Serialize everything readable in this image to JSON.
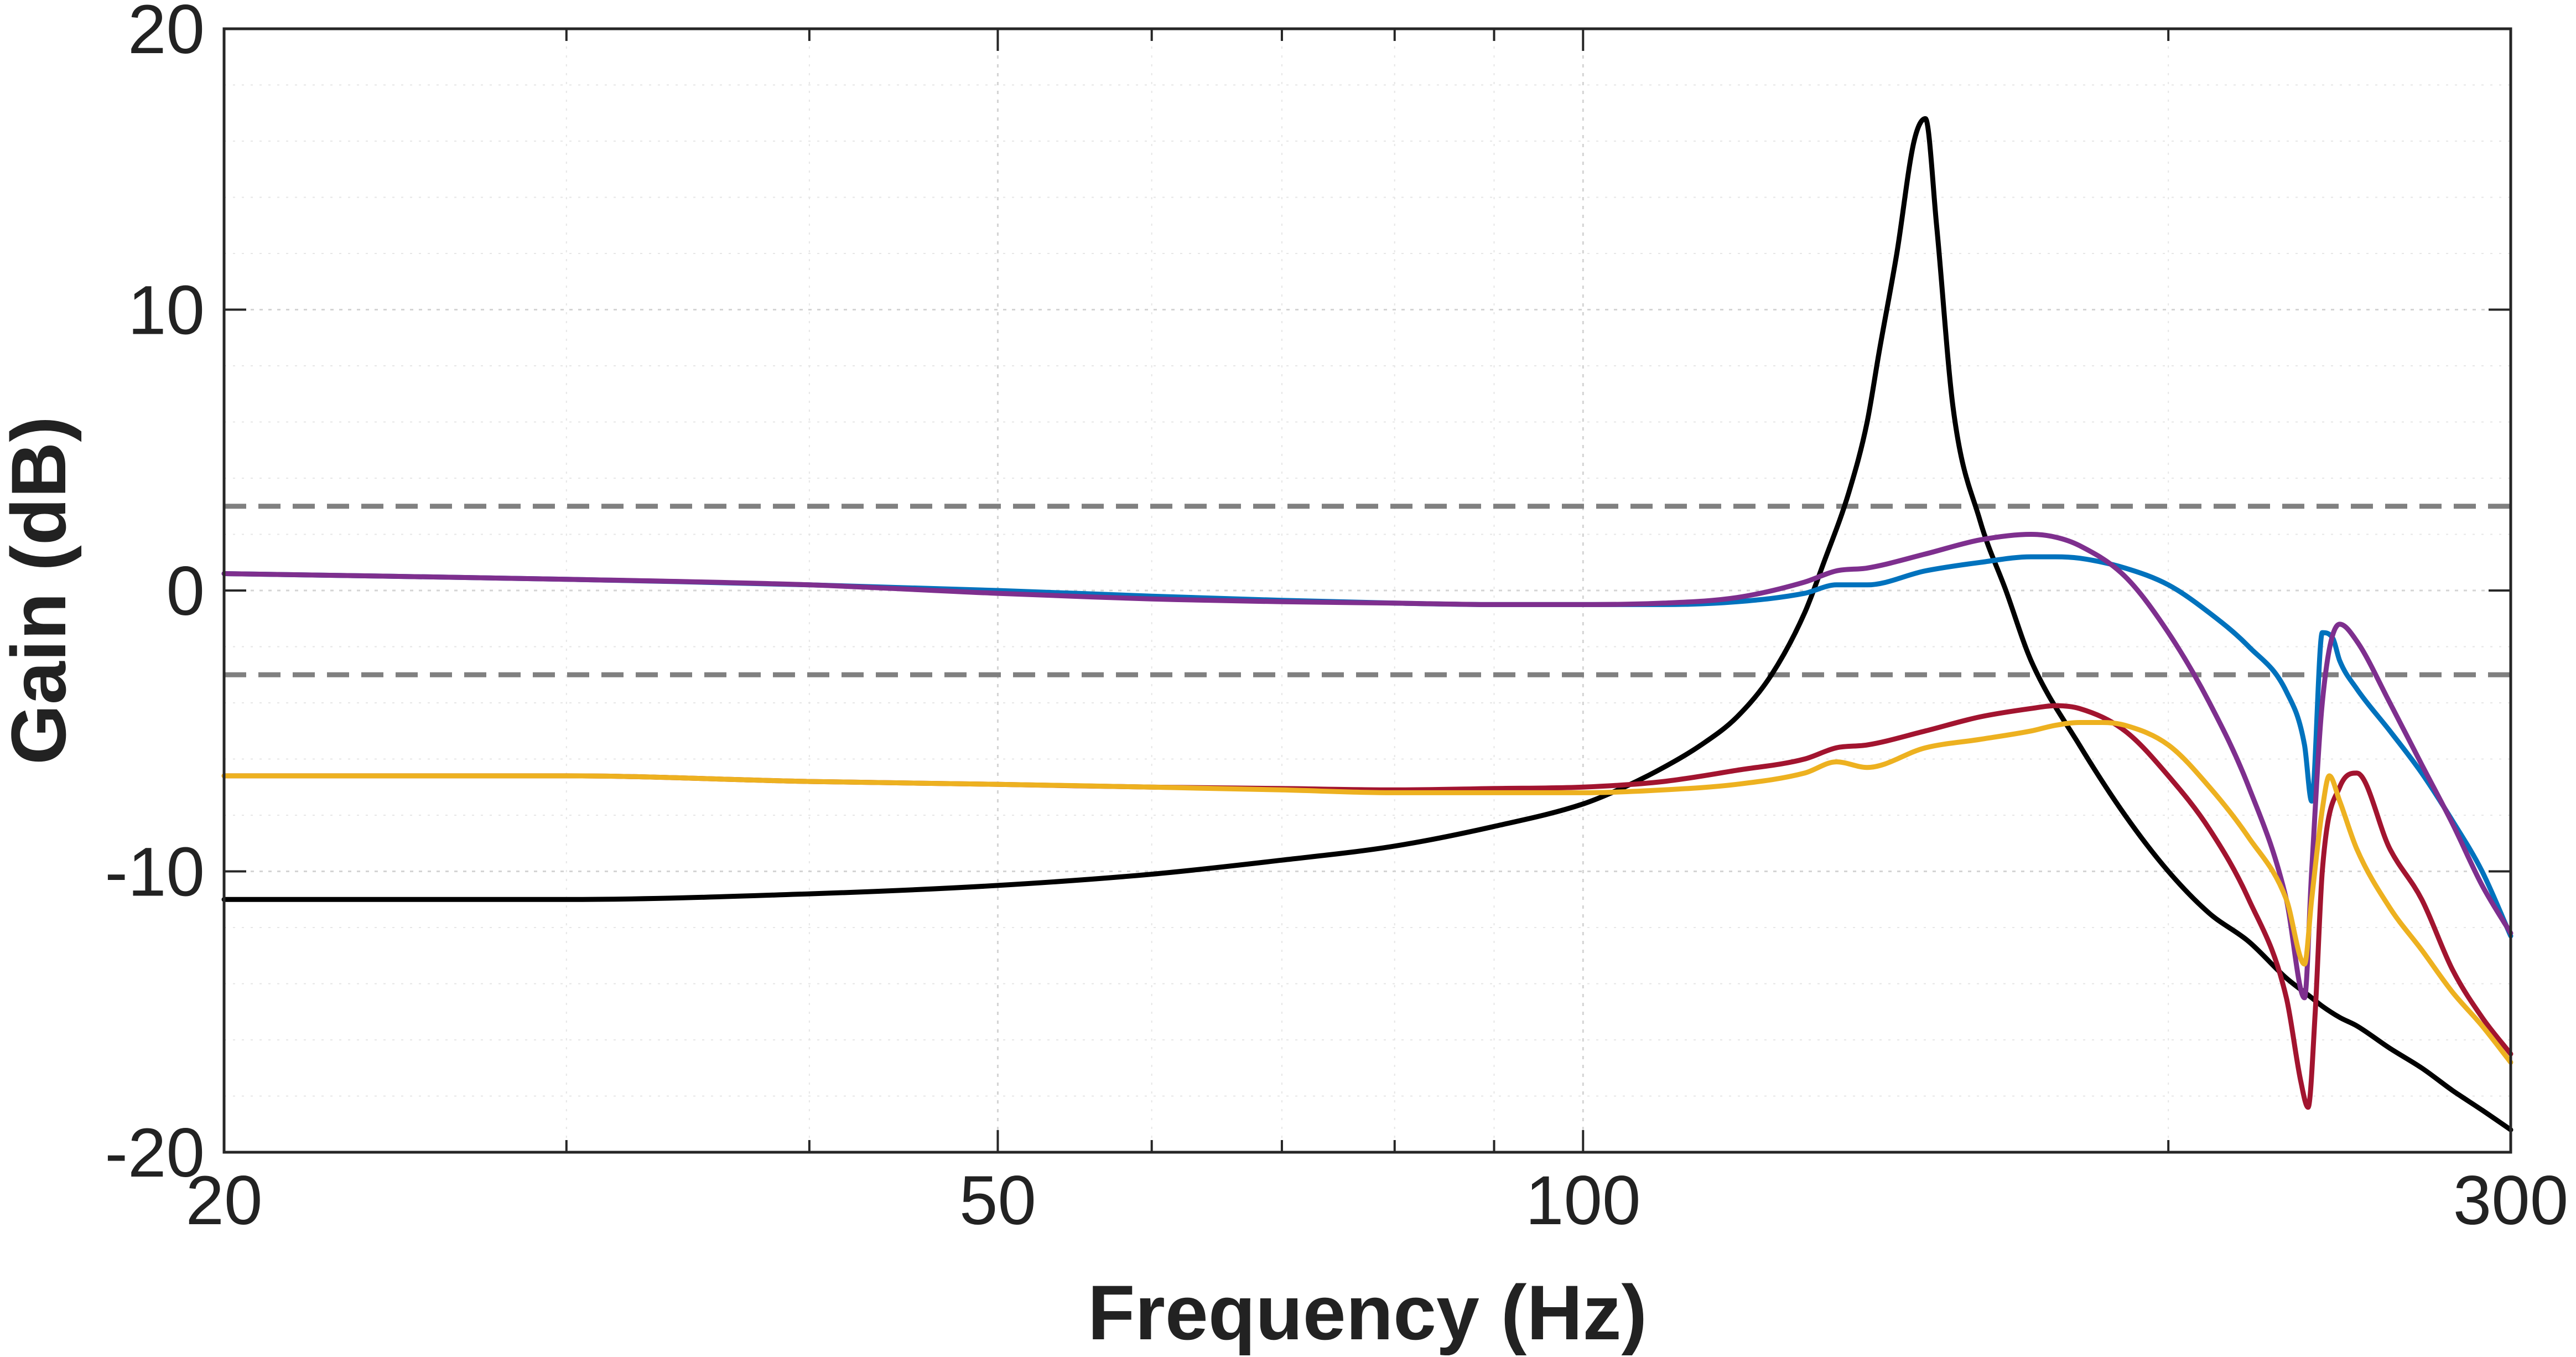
{
  "chart_data": {
    "type": "line",
    "title": "",
    "xlabel": "Frequency (Hz)",
    "ylabel": "Gain (dB)",
    "xscale": "log",
    "xlim": [
      20,
      300
    ],
    "ylim": [
      -20,
      20
    ],
    "xticks": [
      20,
      50,
      100,
      300
    ],
    "xtick_labels": [
      "20",
      "50",
      "100",
      "300"
    ],
    "yticks": [
      -20,
      -10,
      0,
      10,
      20
    ],
    "ytick_labels": [
      "-20",
      "-10",
      "0",
      "10",
      "20"
    ],
    "grid": true,
    "legend": null,
    "reference_lines": [
      {
        "name": "upper-3db-reference",
        "y": 3,
        "color": "#808080",
        "style": "dashed"
      },
      {
        "name": "lower-3db-reference",
        "y": -3,
        "color": "#808080",
        "style": "dashed"
      }
    ],
    "series": [
      {
        "name": "black",
        "color": "#000000",
        "x": [
          20,
          25,
          30,
          40,
          50,
          60,
          70,
          80,
          90,
          100,
          105,
          110,
          115,
          120,
          125,
          130,
          133,
          137,
          140,
          142,
          145,
          148,
          150,
          152,
          155,
          160,
          165,
          170,
          180,
          190,
          200,
          210,
          220,
          230,
          237,
          240,
          245,
          250,
          260,
          270,
          280,
          290,
          300
        ],
        "y": [
          -11.0,
          -11.0,
          -11.0,
          -10.8,
          -10.5,
          -10.1,
          -9.6,
          -9.1,
          -8.4,
          -7.6,
          -7.0,
          -6.3,
          -5.5,
          -4.5,
          -3.0,
          -0.8,
          1.0,
          3.5,
          6.0,
          8.5,
          12.0,
          16.0,
          16.8,
          13.0,
          6.5,
          2.5,
          0.0,
          -2.5,
          -5.5,
          -8.0,
          -10.0,
          -11.5,
          -12.5,
          -13.8,
          -14.5,
          -14.8,
          -15.2,
          -15.5,
          -16.3,
          -17.0,
          -17.8,
          -18.5,
          -19.2
        ]
      },
      {
        "name": "blue",
        "color": "#0072BD",
        "x": [
          20,
          30,
          40,
          50,
          60,
          70,
          80,
          90,
          100,
          110,
          120,
          130,
          135,
          140,
          150,
          160,
          170,
          175,
          180,
          190,
          200,
          210,
          220,
          230,
          235,
          237,
          240,
          243,
          245,
          250,
          260,
          270,
          280,
          290,
          300
        ],
        "y": [
          0.6,
          0.4,
          0.2,
          0.0,
          -0.2,
          -0.35,
          -0.45,
          -0.5,
          -0.5,
          -0.5,
          -0.4,
          -0.1,
          0.2,
          0.2,
          0.7,
          1.0,
          1.2,
          1.2,
          1.15,
          0.8,
          0.2,
          -0.8,
          -2.0,
          -3.6,
          -5.5,
          -7.5,
          -1.5,
          -1.7,
          -2.5,
          -3.5,
          -5.0,
          -6.5,
          -8.2,
          -10.0,
          -12.3
        ]
      },
      {
        "name": "purple",
        "color": "#7E2F8E",
        "x": [
          20,
          30,
          40,
          50,
          60,
          70,
          80,
          90,
          100,
          110,
          120,
          130,
          135,
          140,
          150,
          160,
          170,
          175,
          180,
          190,
          200,
          210,
          220,
          230,
          235,
          237,
          240,
          245,
          250,
          260,
          270,
          280,
          290,
          300
        ],
        "y": [
          0.6,
          0.4,
          0.2,
          -0.1,
          -0.3,
          -0.4,
          -0.45,
          -0.5,
          -0.5,
          -0.45,
          -0.25,
          0.3,
          0.7,
          0.8,
          1.3,
          1.8,
          2.0,
          1.9,
          1.6,
          0.5,
          -1.5,
          -4.0,
          -7.0,
          -11.0,
          -14.5,
          -10.0,
          -4.0,
          -1.2,
          -1.8,
          -4.0,
          -6.2,
          -8.3,
          -10.5,
          -12.2
        ]
      },
      {
        "name": "red",
        "color": "#A2142F",
        "x": [
          20,
          30,
          40,
          50,
          60,
          70,
          80,
          90,
          100,
          110,
          120,
          130,
          135,
          140,
          150,
          160,
          170,
          175,
          180,
          190,
          200,
          210,
          220,
          230,
          234,
          236,
          238,
          240,
          245,
          250,
          260,
          270,
          280,
          290,
          300
        ],
        "y": [
          -6.6,
          -6.6,
          -6.8,
          -6.9,
          -7.0,
          -7.05,
          -7.1,
          -7.05,
          -7.0,
          -6.8,
          -6.4,
          -6.0,
          -5.6,
          -5.5,
          -5.0,
          -4.5,
          -4.2,
          -4.1,
          -4.2,
          -5.0,
          -6.6,
          -8.5,
          -11.0,
          -14.5,
          -17.5,
          -18.4,
          -15.0,
          -10.0,
          -7.0,
          -6.5,
          -9.2,
          -11.0,
          -13.5,
          -15.2,
          -16.5
        ]
      },
      {
        "name": "yellow",
        "color": "#EDB120",
        "x": [
          20,
          30,
          40,
          50,
          60,
          70,
          80,
          90,
          100,
          110,
          120,
          130,
          135,
          140,
          150,
          160,
          170,
          175,
          180,
          185,
          190,
          200,
          210,
          220,
          230,
          235,
          237,
          240,
          242,
          245,
          250,
          260,
          270,
          280,
          290,
          300
        ],
        "y": [
          -6.6,
          -6.6,
          -6.8,
          -6.9,
          -7.0,
          -7.1,
          -7.2,
          -7.2,
          -7.2,
          -7.1,
          -6.9,
          -6.5,
          -6.1,
          -6.3,
          -5.6,
          -5.3,
          -5.0,
          -4.8,
          -4.7,
          -4.7,
          -4.8,
          -5.5,
          -7.0,
          -8.8,
          -11.0,
          -13.3,
          -11.0,
          -7.8,
          -6.6,
          -7.5,
          -9.2,
          -11.3,
          -12.8,
          -14.3,
          -15.5,
          -16.8
        ]
      }
    ]
  }
}
